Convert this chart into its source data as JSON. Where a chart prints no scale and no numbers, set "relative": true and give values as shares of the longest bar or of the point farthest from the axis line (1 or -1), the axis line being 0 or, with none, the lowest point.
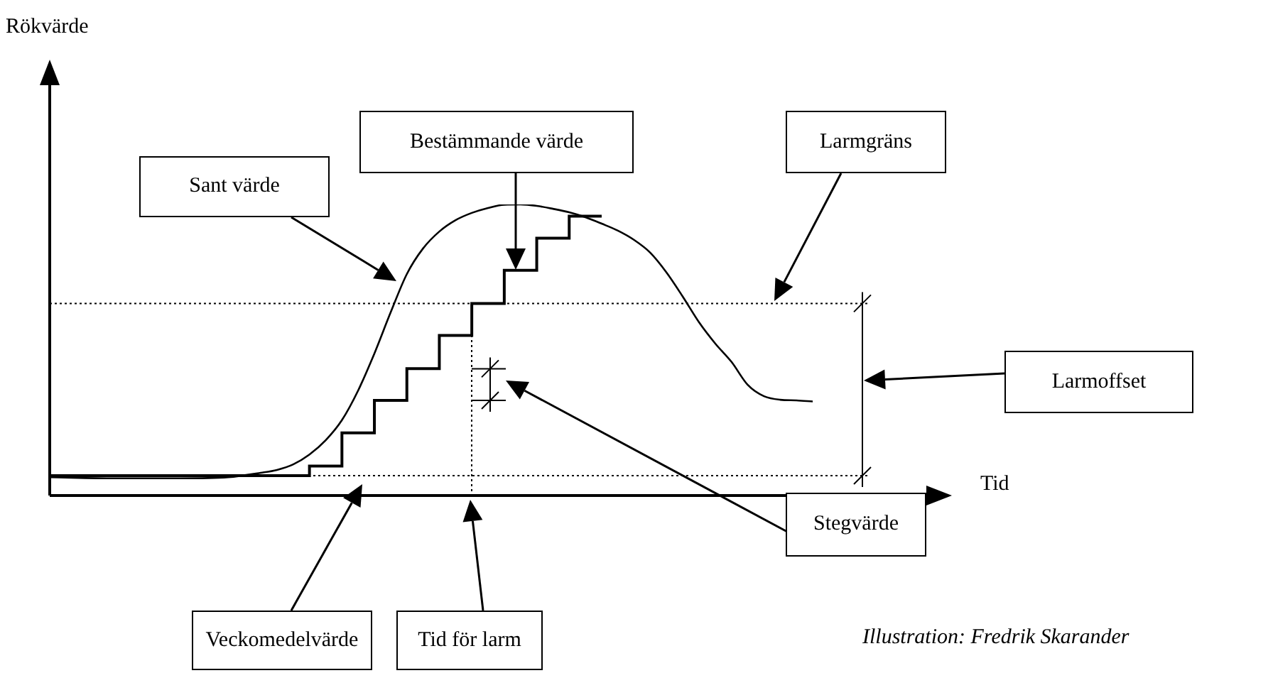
{
  "chart_data": {
    "type": "line",
    "relative": true,
    "xlabel": "Tid",
    "legend": false,
    "grid": false,
    "tick_labels": false,
    "marker": "none",
    "categories": [
      null,
      null,
      null,
      null,
      null,
      null,
      null,
      null,
      null,
      null,
      null,
      null,
      null,
      null,
      null,
      null,
      null,
      null,
      null,
      null,
      null,
      null,
      null,
      null,
      null,
      null,
      null,
      null,
      null,
      null,
      null,
      null,
      null,
      null,
      null,
      null,
      null,
      null,
      null,
      null,
      null,
      null,
      null,
      null,
      null,
      null,
      null,
      null,
      null,
      null,
      null,
      null,
      null,
      null,
      null
    ],
    "series": [
      {
        "type": "line",
        "color": "#000000",
        "values": [
          0.063,
          null,
          null,
          null,
          0.059,
          null,
          null,
          null,
          0.059,
          null,
          null,
          0.063,
          null,
          0.078,
          0.088,
          0.107,
          0.141,
          0.19,
          0.259,
          0.361,
          0.488,
          0.629,
          0.761,
          0.849,
          0.907,
          0.946,
          0.971,
          0.988,
          0.999,
          1.0,
          0.995,
          0.985,
          0.973,
          0.956,
          0.934,
          0.91,
          0.878,
          0.834,
          0.766,
          0.683,
          0.595,
          0.522,
          0.459,
          0.38,
          0.341,
          0.329,
          0.327,
          0.323,
          null,
          null,
          null,
          null,
          null,
          null,
          null
        ]
      },
      {
        "type": "step",
        "color": "#000000",
        "values": [
          0.068,
          null,
          null,
          null,
          null,
          null,
          null,
          null,
          null,
          null,
          null,
          null,
          null,
          null,
          null,
          null,
          0.101,
          null,
          0.215,
          null,
          0.327,
          null,
          0.436,
          null,
          0.55,
          null,
          0.66,
          null,
          0.774,
          null,
          0.884,
          null,
          0.96,
          null,
          0.96,
          null,
          null,
          null,
          null,
          null,
          null,
          null,
          null,
          null,
          null,
          null,
          null,
          null,
          null,
          null,
          null,
          null,
          null,
          null,
          null
        ]
      }
    ],
    "ref_lines": [
      {
        "axis": "y",
        "value": 0.66,
        "color": "#000000",
        "line_style": "dotted"
      },
      {
        "axis": "y",
        "value": 0.068,
        "color": "#000000",
        "line_style": "dotted"
      }
    ],
    "annotations": [
      "Rökvärde",
      "Sant värde",
      "Bestämmande värde",
      "Larmgräns",
      "Larmoffset",
      "Stegvärde",
      "Veckomedelvärde",
      "Tid för larm",
      "Illustration: Fredrik Skarander"
    ]
  }
}
